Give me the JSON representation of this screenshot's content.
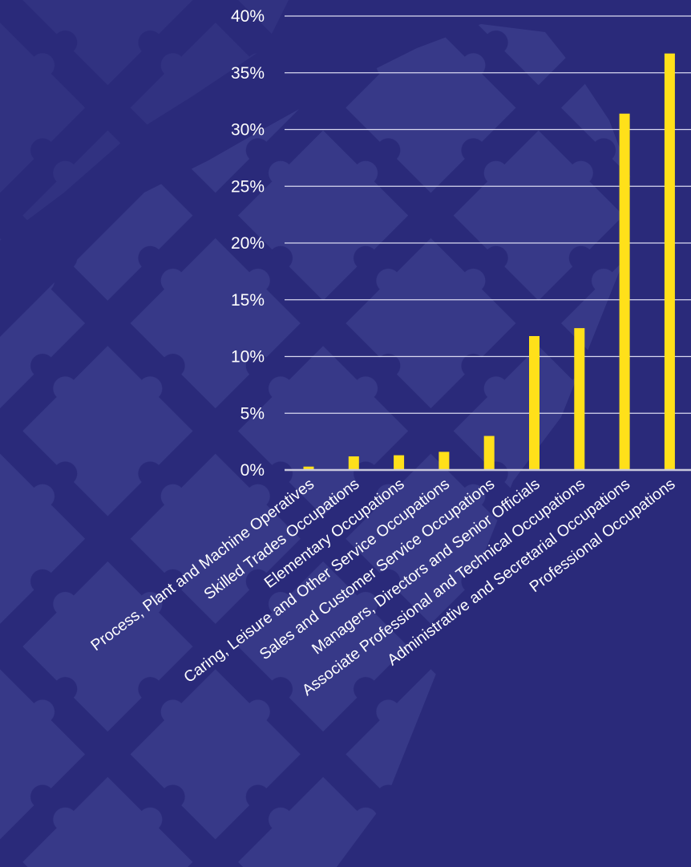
{
  "colors": {
    "background": "#2a2a7a",
    "puzzle_pattern": "#3a3d8c",
    "bar": "#ffe01a",
    "gridline": "#d9d9f0",
    "text": "#ffffff"
  },
  "chart_data": {
    "type": "bar",
    "title": "",
    "xlabel": "",
    "ylabel": "",
    "categories": [
      "Process, Plant and Machine Operatives",
      "Skilled Trades Occupations",
      "Elementary Occupations",
      "Caring, Leisure and Other Service Occupations",
      "Sales and Customer Service Occupations",
      "Managers, Directors and Senior Officials",
      "Associate Professional and Technical Occupations",
      "Administrative and Secretarial Occupations",
      "Professional Occupations"
    ],
    "values": [
      0.3,
      1.2,
      1.3,
      1.6,
      3.0,
      11.8,
      12.5,
      31.4,
      36.7
    ],
    "ylim": [
      0,
      40
    ],
    "yticks": [
      0,
      5,
      10,
      15,
      20,
      25,
      30,
      35,
      40
    ],
    "ytick_labels": [
      "0%",
      "5%",
      "10%",
      "15%",
      "20%",
      "25%",
      "30%",
      "35%",
      "40%"
    ],
    "grid": true,
    "legend": "none"
  }
}
